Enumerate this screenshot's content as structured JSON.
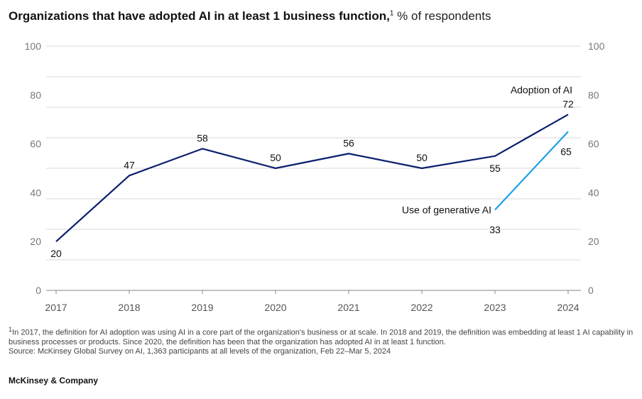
{
  "header": {
    "title": "Organizations that have adopted AI in at least 1 business function,",
    "title_footnote": "1",
    "subtitle": "% of respondents"
  },
  "chart_data": {
    "type": "line",
    "categories": [
      "2017",
      "2018",
      "2019",
      "2020",
      "2021",
      "2022",
      "2023",
      "2024"
    ],
    "ylim": [
      0,
      100
    ],
    "yticks": [
      0,
      20,
      40,
      60,
      80,
      100
    ],
    "grid": true,
    "series": [
      {
        "name": "Adoption of AI",
        "color": "#0b1f6e",
        "x": [
          "2017",
          "2018",
          "2019",
          "2020",
          "2021",
          "2022",
          "2023",
          "2024"
        ],
        "values": [
          20,
          47,
          58,
          50,
          56,
          50,
          55,
          72
        ]
      },
      {
        "name": "Use of generative AI",
        "color": "#1ea0e8",
        "x": [
          "2023",
          "2024"
        ],
        "values": [
          33,
          65
        ]
      }
    ]
  },
  "footnotes": {
    "note_marker": "1",
    "note": "In 2017, the definition for AI adoption was using AI in a core part of the organization's business or at scale. In 2018 and 2019, the definition was embedding at least 1 AI capability in business processes or products. Since 2020, the definition has been that the organization has adopted AI in at least 1 function.",
    "source": "Source: McKinsey Global Survey on AI, 1,363 participants at all levels of the organization, Feb 22–Mar 5, 2024"
  },
  "brand": "McKinsey & Company"
}
